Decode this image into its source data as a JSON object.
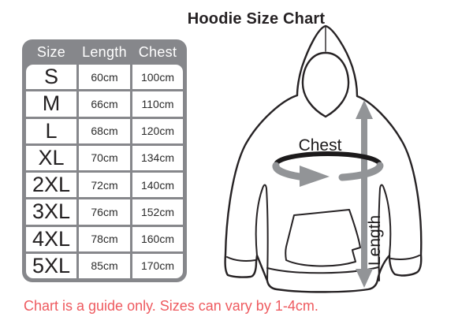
{
  "title": "Hoodie Size Chart",
  "disclaimer": "Chart is a guide only. Sizes can vary by 1-4cm.",
  "colors": {
    "table_gray": "#86878b",
    "arrow_gray": "#929497",
    "line_black": "#262224",
    "disclaimer_red": "#ee5a5f",
    "header_text": "#ffffff"
  },
  "table": {
    "columns": [
      "Size",
      "Length",
      "Chest"
    ],
    "rows": [
      {
        "size": "S",
        "length": "60cm",
        "chest": "100cm"
      },
      {
        "size": "M",
        "length": "66cm",
        "chest": "110cm"
      },
      {
        "size": "L",
        "length": "68cm",
        "chest": "120cm"
      },
      {
        "size": "XL",
        "length": "70cm",
        "chest": "134cm"
      },
      {
        "size": "2XL",
        "length": "72cm",
        "chest": "140cm"
      },
      {
        "size": "3XL",
        "length": "76cm",
        "chest": "152cm"
      },
      {
        "size": "4XL",
        "length": "78cm",
        "chest": "160cm"
      },
      {
        "size": "5XL",
        "length": "85cm",
        "chest": "170cm"
      }
    ]
  },
  "diagram": {
    "chest_label": "Chest",
    "length_label": "Length"
  },
  "chart_data": {
    "type": "table",
    "title": "Hoodie Size Chart",
    "columns": [
      "Size",
      "Length",
      "Chest"
    ],
    "rows": [
      [
        "S",
        "60cm",
        "100cm"
      ],
      [
        "M",
        "66cm",
        "110cm"
      ],
      [
        "L",
        "68cm",
        "120cm"
      ],
      [
        "XL",
        "70cm",
        "134cm"
      ],
      [
        "2XL",
        "72cm",
        "140cm"
      ],
      [
        "3XL",
        "76cm",
        "152cm"
      ],
      [
        "4XL",
        "78cm",
        "160cm"
      ],
      [
        "5XL",
        "85cm",
        "170cm"
      ]
    ],
    "notes": "Chart is a guide only. Sizes can vary by 1-4cm."
  }
}
